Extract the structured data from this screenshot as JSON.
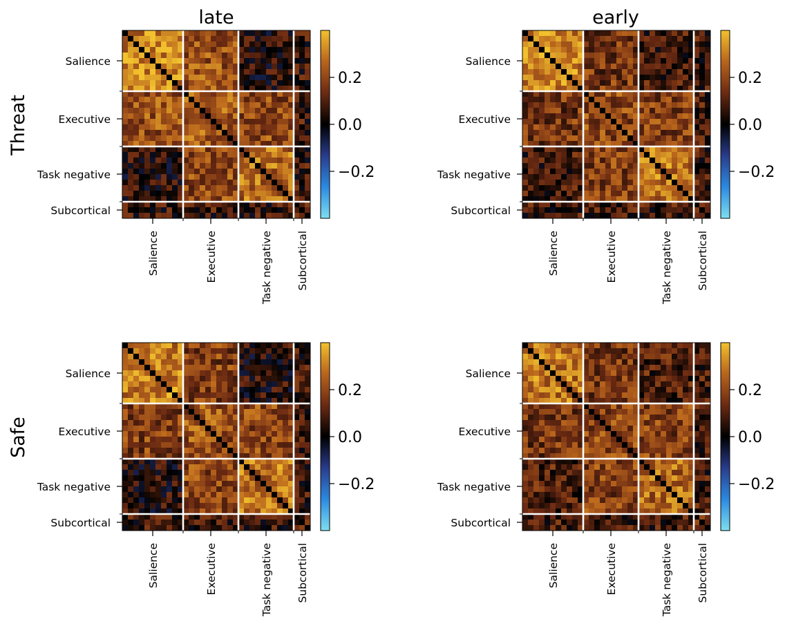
{
  "figure": {
    "column_titles": [
      "late",
      "early"
    ],
    "row_labels": [
      "Threat",
      "Safe"
    ]
  },
  "chart_data": {
    "type": "heatmap",
    "matrix_size": 34,
    "network_labels": [
      "Salience",
      "Executive",
      "Task negative",
      "Subcortical"
    ],
    "network_sizes": [
      11,
      10,
      10,
      3
    ],
    "colorbar": {
      "range": [
        -0.4,
        0.4
      ],
      "ticks": [
        -0.2,
        0.0,
        0.2
      ],
      "tick_labels": [
        "−0.2",
        "0.0",
        "0.2"
      ],
      "colors": [
        "#7fdff0",
        "#2b8ae0",
        "#2a3c8c",
        "#000000",
        "#6b2a12",
        "#b8641c",
        "#f2c12e"
      ]
    },
    "panels": [
      {
        "row": "Threat",
        "col": "late",
        "within": [
          0.3,
          0.24,
          0.26,
          0.1
        ],
        "between": {
          "sal-exe": 0.22,
          "sal-tn": 0.04,
          "exe-tn": 0.2,
          "sub-other": 0.07
        },
        "diagonal": 0.0
      },
      {
        "row": "Threat",
        "col": "early",
        "within": [
          0.3,
          0.2,
          0.28,
          0.12
        ],
        "between": {
          "sal-exe": 0.16,
          "sal-tn": 0.08,
          "exe-tn": 0.18,
          "sub-other": 0.08
        },
        "diagonal": 0.0
      },
      {
        "row": "Safe",
        "col": "late",
        "within": [
          0.3,
          0.22,
          0.28,
          0.1
        ],
        "between": {
          "sal-exe": 0.18,
          "sal-tn": 0.04,
          "exe-tn": 0.2,
          "sub-other": 0.07
        },
        "diagonal": 0.0
      },
      {
        "row": "Safe",
        "col": "early",
        "within": [
          0.28,
          0.2,
          0.26,
          0.12
        ],
        "between": {
          "sal-exe": 0.16,
          "sal-tn": 0.1,
          "exe-tn": 0.18,
          "sub-other": 0.08
        },
        "diagonal": 0.0
      }
    ]
  }
}
